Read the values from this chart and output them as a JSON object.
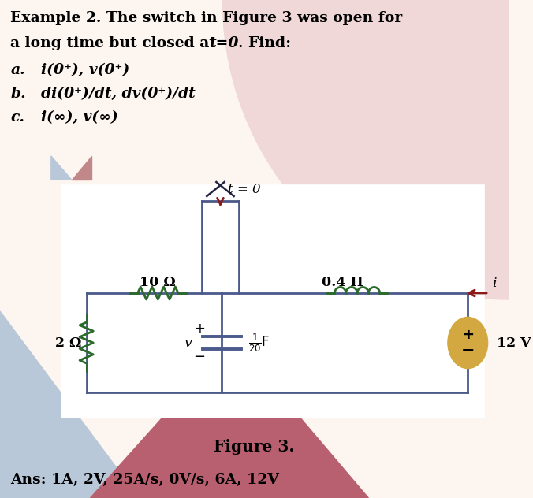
{
  "bg_color": "#fdf6f0",
  "pink_bg": "#f0d8d8",
  "blue_bg": "#b8c8d8",
  "red_bg": "#b86070",
  "circuit_bg": "#ffffff",
  "title_line1": "Example 2. The switch in Figure 3 was open for",
  "title_line2_normal": "a long time but closed at ",
  "title_t0": "t=0",
  "title_end": ". Find:",
  "item_a_label": "a.",
  "item_a_text": "i(0⁺), v(0⁺)",
  "item_b_label": "b.",
  "item_b_text": "di(0⁺)/dt, dv(0⁺)/dt",
  "item_c_label": "c.",
  "item_c_text": "i(∞), v(∞)",
  "fig_caption": "Figure 3.",
  "answer": "Ans: 1A, 2V, 25A/s, 0V/s, 6A, 12V",
  "resistor_2ohm": "2 Ω",
  "resistor_10ohm": "10 Ω",
  "inductor_val": "0.4 H",
  "voltage_val": "12 V",
  "switch_label": "t = 0",
  "current_label": "i",
  "v_label": "v",
  "circuit_line_color": "#4a5a8a",
  "resistor_color": "#2a6a2a",
  "inductor_color": "#2a6a2a",
  "switch_arrow_color": "#8b1a1a",
  "voltage_source_color": "#d4a840",
  "voltage_source_edge": "#9a7810"
}
